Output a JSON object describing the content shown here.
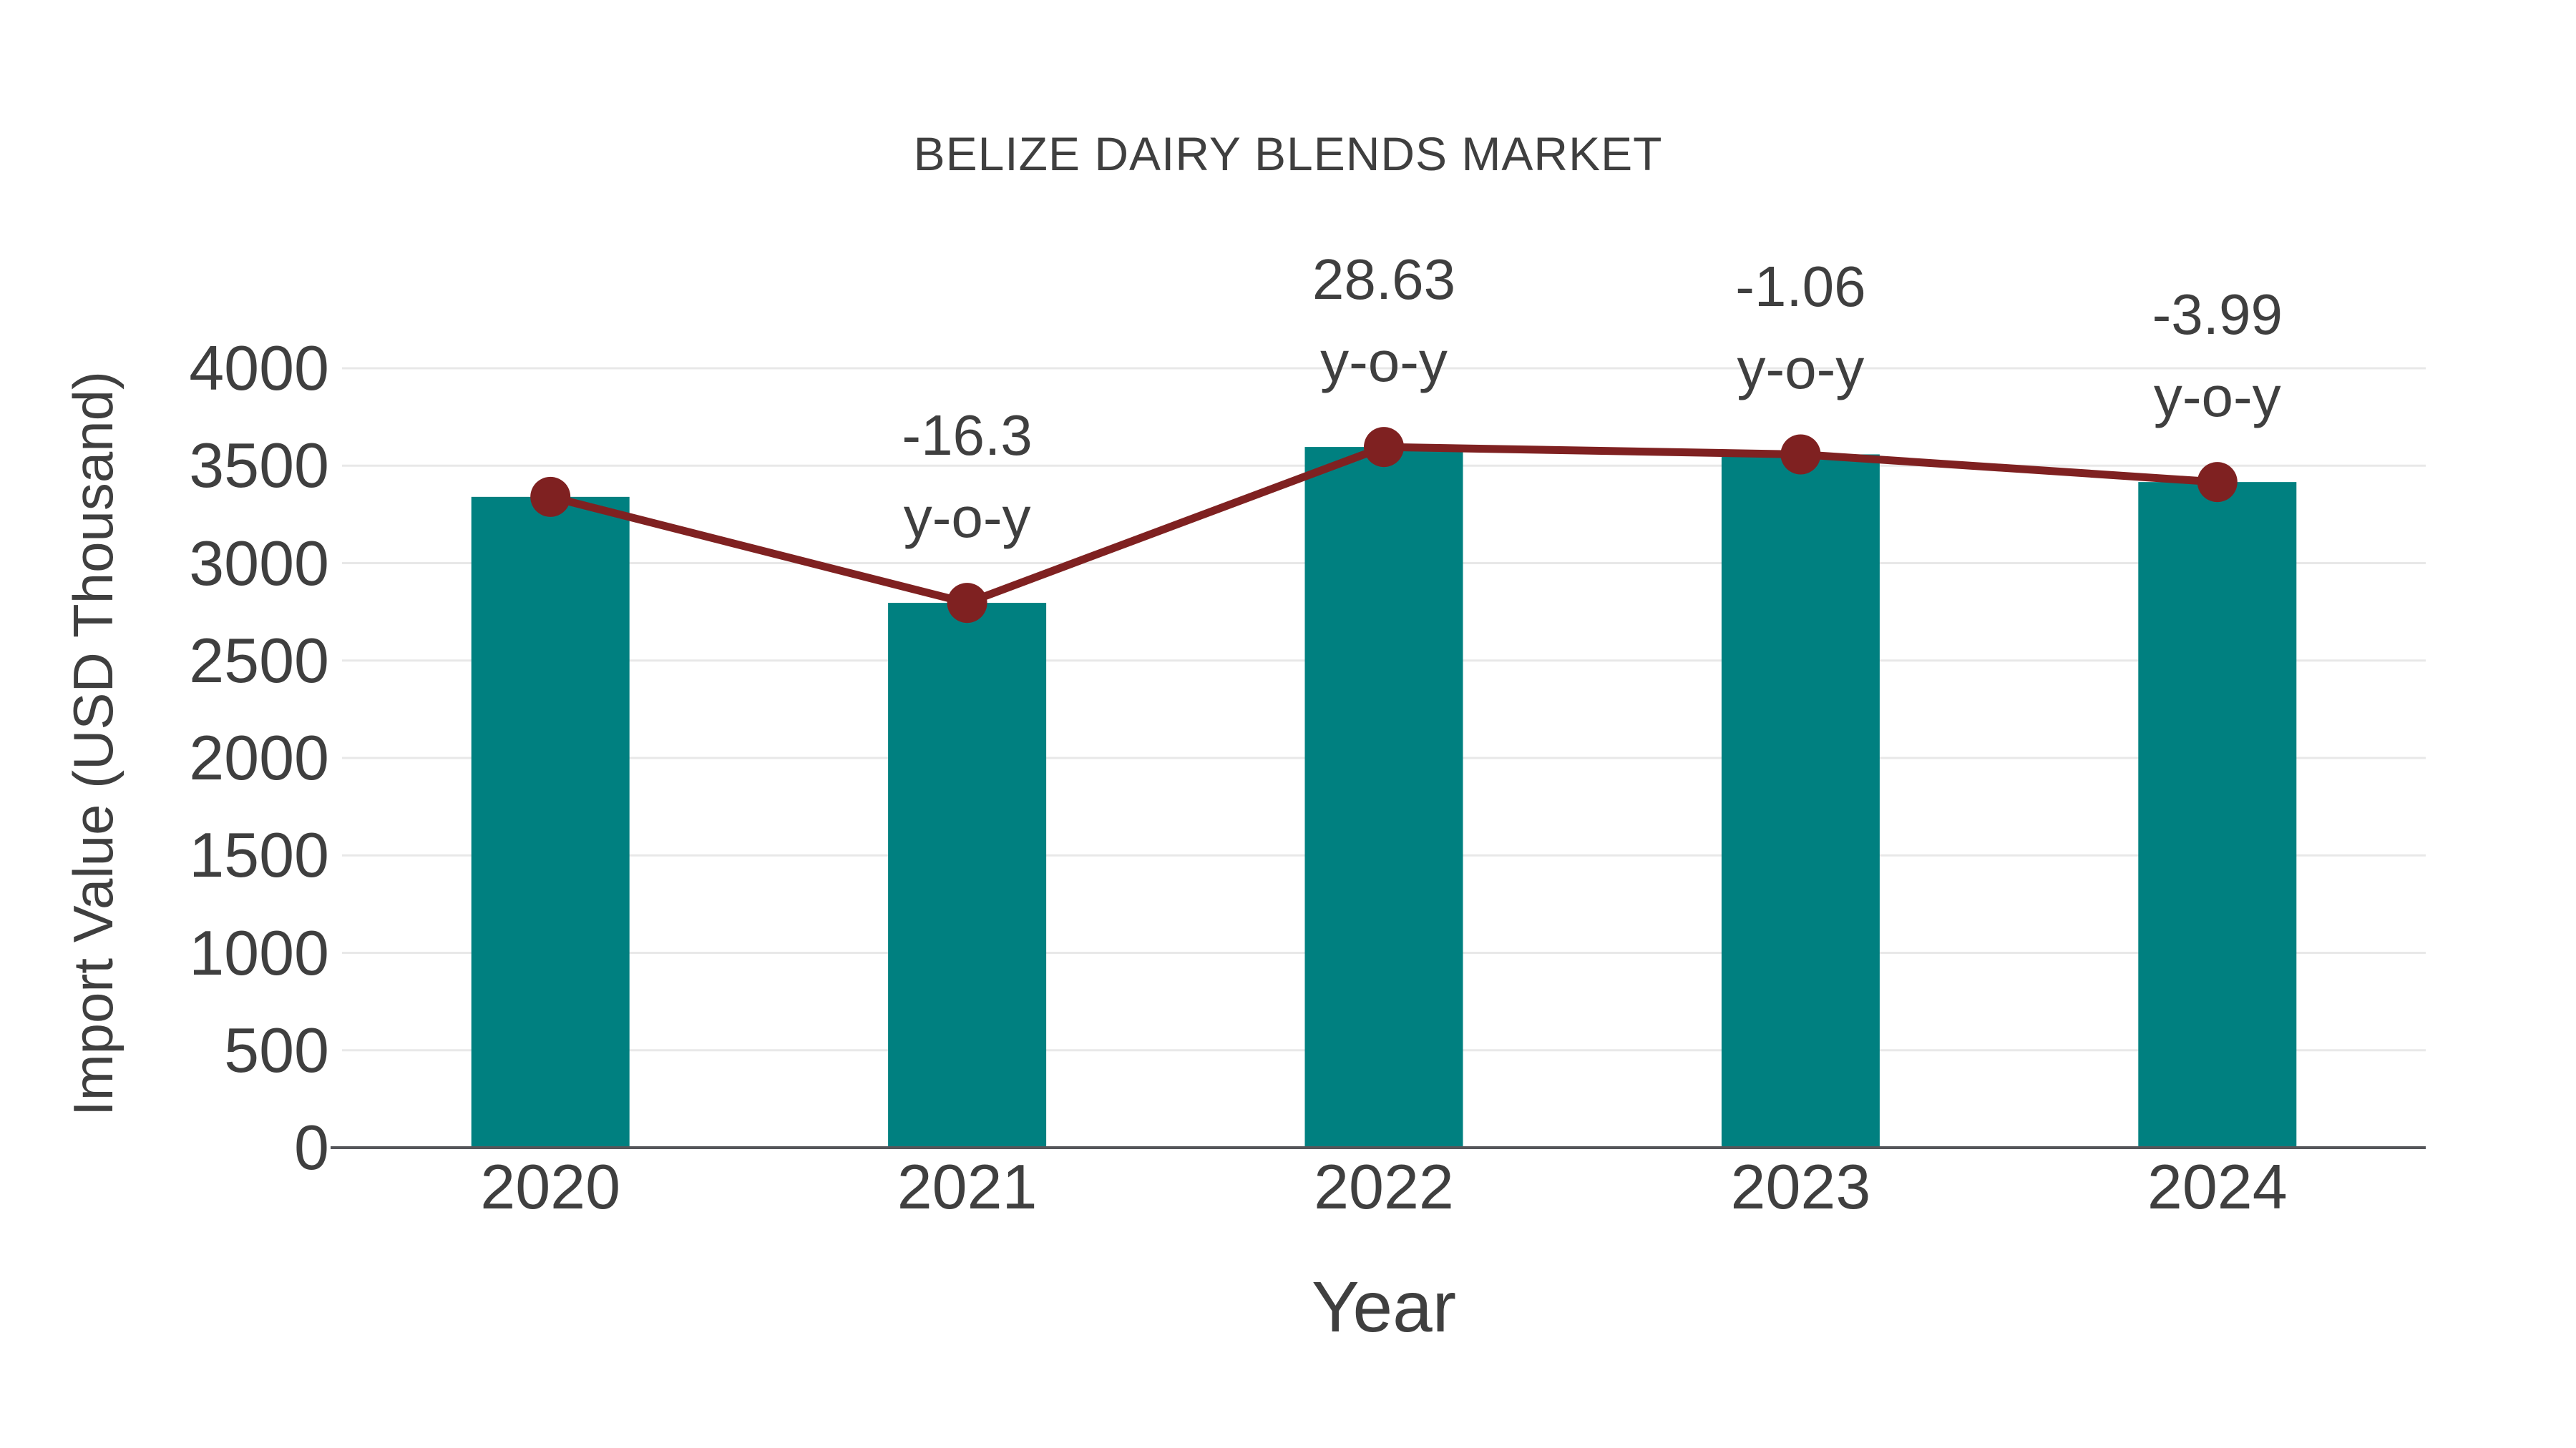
{
  "chart_data": {
    "type": "bar",
    "title": "BELIZE DAIRY BLENDS MARKET",
    "categories": [
      "2020",
      "2021",
      "2022",
      "2023",
      "2024"
    ],
    "series": [
      {
        "type": "bar",
        "values": [
          3340,
          2796,
          3596,
          3558,
          3416
        ]
      },
      {
        "type": "line",
        "values": [
          3340,
          2796,
          3596,
          3558,
          3416
        ]
      }
    ],
    "annotations": [
      {
        "category": "2021",
        "value": "-16.3",
        "label": "y-o-y"
      },
      {
        "category": "2022",
        "value": "28.63",
        "label": "y-o-y"
      },
      {
        "category": "2023",
        "value": "-1.06",
        "label": "y-o-y"
      },
      {
        "category": "2024",
        "value": "-3.99",
        "label": "y-o-y"
      }
    ],
    "xlabel": "Year",
    "ylabel": "Import Value (USD Thousand)",
    "yticks": [
      0,
      500,
      1000,
      1500,
      2000,
      2500,
      3000,
      3500,
      4000
    ],
    "ylim": [
      0,
      4000
    ],
    "grid": true,
    "legend": false,
    "colors": {
      "bar": "#008080",
      "line": "#7f2121",
      "text": "#3f3f3f",
      "axis": "#55565a",
      "gridline": "#e8e8e8",
      "background": "#ffffff"
    }
  }
}
